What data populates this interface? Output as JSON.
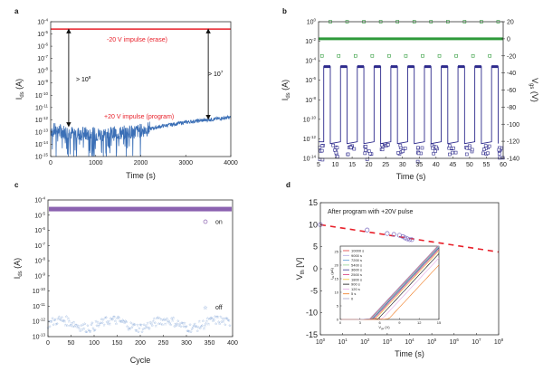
{
  "chart_data": [
    {
      "panel": "a",
      "type": "line",
      "xlabel": "Time (s)",
      "ylabel": "I_ds (A)",
      "xlim": [
        0,
        4000
      ],
      "ylim_log10": [
        -15,
        -4
      ],
      "xticks": [
        "0",
        "1000",
        "2000",
        "3000",
        "4000"
      ],
      "yticks": [
        "10^-4",
        "10^-5",
        "10^-6",
        "10^-7",
        "10^-8",
        "10^-9",
        "10^-10",
        "10^-11",
        "10^-12",
        "10^-13",
        "10^-14",
        "10^-15"
      ],
      "series": [
        {
          "name": "-20 V impulse (erase)",
          "color": "#e8202a",
          "x": [
            0,
            4000
          ],
          "log10_y": [
            -4.6,
            -4.6
          ]
        },
        {
          "name": "+20 V impulse (program)",
          "color": "#3b6fb6",
          "x": [
            0,
            500,
            1000,
            1500,
            2000,
            2500,
            3000,
            3500,
            4000
          ],
          "log10_y": [
            -12.8,
            -13.1,
            -13.2,
            -13.1,
            -12.9,
            -12.5,
            -12.2,
            -12.0,
            -11.8
          ]
        }
      ],
      "annotations": [
        {
          "text": "-20 V impulse (erase)",
          "color": "#e8202a"
        },
        {
          "text": "+20 V impulse (program)",
          "color": "#e8202a"
        },
        {
          "text": "> 10^8",
          "at_x": 400
        },
        {
          "text": "> 10^7",
          "at_x": 3500
        }
      ]
    },
    {
      "panel": "b",
      "type": "line",
      "xlabel": "Time (s)",
      "ylabel": "I_ds (A)",
      "y2label": "V_gs (V)",
      "xlim": [
        5,
        60
      ],
      "ylim_log10": [
        -14,
        0
      ],
      "y2lim": [
        -140,
        20
      ],
      "xticks": [
        "5",
        "10",
        "15",
        "20",
        "25",
        "30",
        "35",
        "40",
        "45",
        "50",
        "55",
        "60"
      ],
      "yticks": [
        "10^0",
        "10^-2",
        "10^-4",
        "10^-6",
        "10^-8",
        "10^-10",
        "10^-12",
        "10^-14"
      ],
      "y2ticks": [
        "20",
        "0",
        "-20",
        "-40",
        "-60",
        "-80",
        "-100",
        "-120",
        "-140"
      ],
      "pulse_times_high": [
        8.5,
        13.5,
        18.5,
        23.5,
        28.5,
        33.5,
        38.5,
        43.5,
        48.5,
        53.5,
        58.5
      ],
      "pulse_times_low": [
        6,
        11,
        16,
        21,
        26,
        31,
        36,
        41,
        46,
        51,
        56
      ],
      "series": [
        {
          "name": "I_ds",
          "color": "#2d2a8c",
          "on_log10": -4.6,
          "off_log10": -12.3
        },
        {
          "name": "V_gs",
          "color": "#2e9a3a",
          "baseline": 0,
          "high": 20,
          "low": -20
        }
      ]
    },
    {
      "panel": "c",
      "type": "scatter",
      "xlabel": "Cycle",
      "ylabel": "I_ds (A)",
      "xlim": [
        0,
        400
      ],
      "ylim_log10": [
        -13,
        -4
      ],
      "xticks": [
        "0",
        "50",
        "100",
        "150",
        "200",
        "250",
        "300",
        "350",
        "400"
      ],
      "yticks": [
        "10^-4",
        "10^-5",
        "10^-6",
        "10^-7",
        "10^-8",
        "10^-9",
        "10^-10",
        "10^-11",
        "10^-12",
        "10^-13"
      ],
      "series": [
        {
          "name": "on",
          "color": "#8b62b0",
          "marker": "circle",
          "log10_y_mean": -4.6
        },
        {
          "name": "off",
          "color": "#3f74c0",
          "marker": "star",
          "log10_y_mean": -12.15
        }
      ],
      "legend": [
        "on",
        "off"
      ]
    },
    {
      "panel": "d",
      "type": "scatter",
      "xlabel": "Time (s)",
      "ylabel": "V_th (V)",
      "xlim_log10": [
        0,
        8
      ],
      "ylim": [
        -15,
        15
      ],
      "xticks": [
        "10^0",
        "10^1",
        "10^2",
        "10^3",
        "10^4",
        "10^5",
        "10^6",
        "10^7",
        "10^8"
      ],
      "yticks": [
        "15",
        "10",
        "5",
        "0",
        "-5",
        "-10",
        "-15"
      ],
      "title": "After program with +20V pulse",
      "series": [
        {
          "name": "measured",
          "color": "#7b6bc0",
          "marker": "circle",
          "log10_x": [
            0,
            2.1,
            3.0,
            3.3,
            3.55,
            3.7,
            3.8,
            3.9,
            4.0,
            4.1
          ],
          "y": [
            10,
            8.8,
            8.0,
            7.8,
            7.6,
            7.3,
            7.0,
            6.8,
            6.6,
            6.6
          ]
        },
        {
          "name": "fit",
          "color": "#e8202a",
          "style": "dashed",
          "log10_x": [
            0,
            8
          ],
          "y": [
            10,
            3.8
          ]
        }
      ],
      "inset": {
        "xlabel": "V_gs (V)",
        "ylabel": "I_ds (μA)",
        "xlim": [
          0,
          15
        ],
        "ylim": [
          0,
          27
        ],
        "xticks": [
          "0",
          "3",
          "6",
          "9",
          "12",
          "15"
        ],
        "yticks": [
          "0",
          "5",
          "10",
          "15",
          "20",
          "25"
        ],
        "legend": [
          {
            "label": "10000 s",
            "color": "#e03a3a"
          },
          {
            "label": "9000 s",
            "color": "#b0a8e0"
          },
          {
            "label": "7200 s",
            "color": "#5b9bd5"
          },
          {
            "label": "5400 s",
            "color": "#8fd08f"
          },
          {
            "label": "3600 s",
            "color": "#3a3890"
          },
          {
            "label": "2500 s",
            "color": "#d6387a"
          },
          {
            "label": "1800 s",
            "color": "#f2c12e"
          },
          {
            "label": "900 s",
            "color": "#111111"
          },
          {
            "label": "120 s",
            "color": "#e6a8e6"
          },
          {
            "label": "5 s",
            "color": "#f07a20"
          },
          {
            "label": "0",
            "color": "#a9a4c8"
          }
        ],
        "vth_shift": [
          4.6,
          4.7,
          4.8,
          4.9,
          5.0,
          5.2,
          5.4,
          5.8,
          6.4,
          7.4,
          4.5
        ]
      }
    }
  ]
}
